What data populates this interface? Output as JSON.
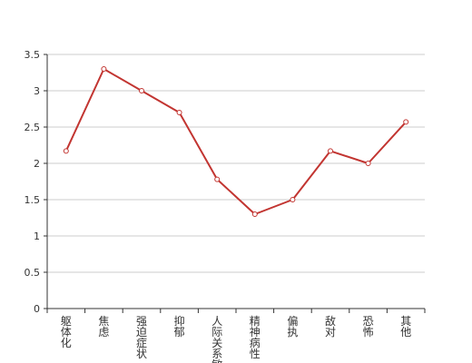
{
  "chart_data": {
    "type": "line",
    "categories": [
      "躯体化",
      "焦虑",
      "强迫症状",
      "抑郁",
      "人际关系敏",
      "精神病性",
      "偏执",
      "敌对",
      "恐怖",
      "其他"
    ],
    "series": [
      {
        "values": [
          2.17,
          3.3,
          3.0,
          2.7,
          1.78,
          1.3,
          1.5,
          2.17,
          2.0,
          2.57
        ]
      }
    ],
    "yticks": [
      "0",
      "0.5",
      "1",
      "1.5",
      "2",
      "2.5",
      "3",
      "3.5"
    ],
    "ylim": [
      0,
      3.5
    ],
    "grid": true,
    "colors": {
      "line": "#c23531",
      "grid": "#cccccc",
      "axis": "#333333"
    }
  }
}
